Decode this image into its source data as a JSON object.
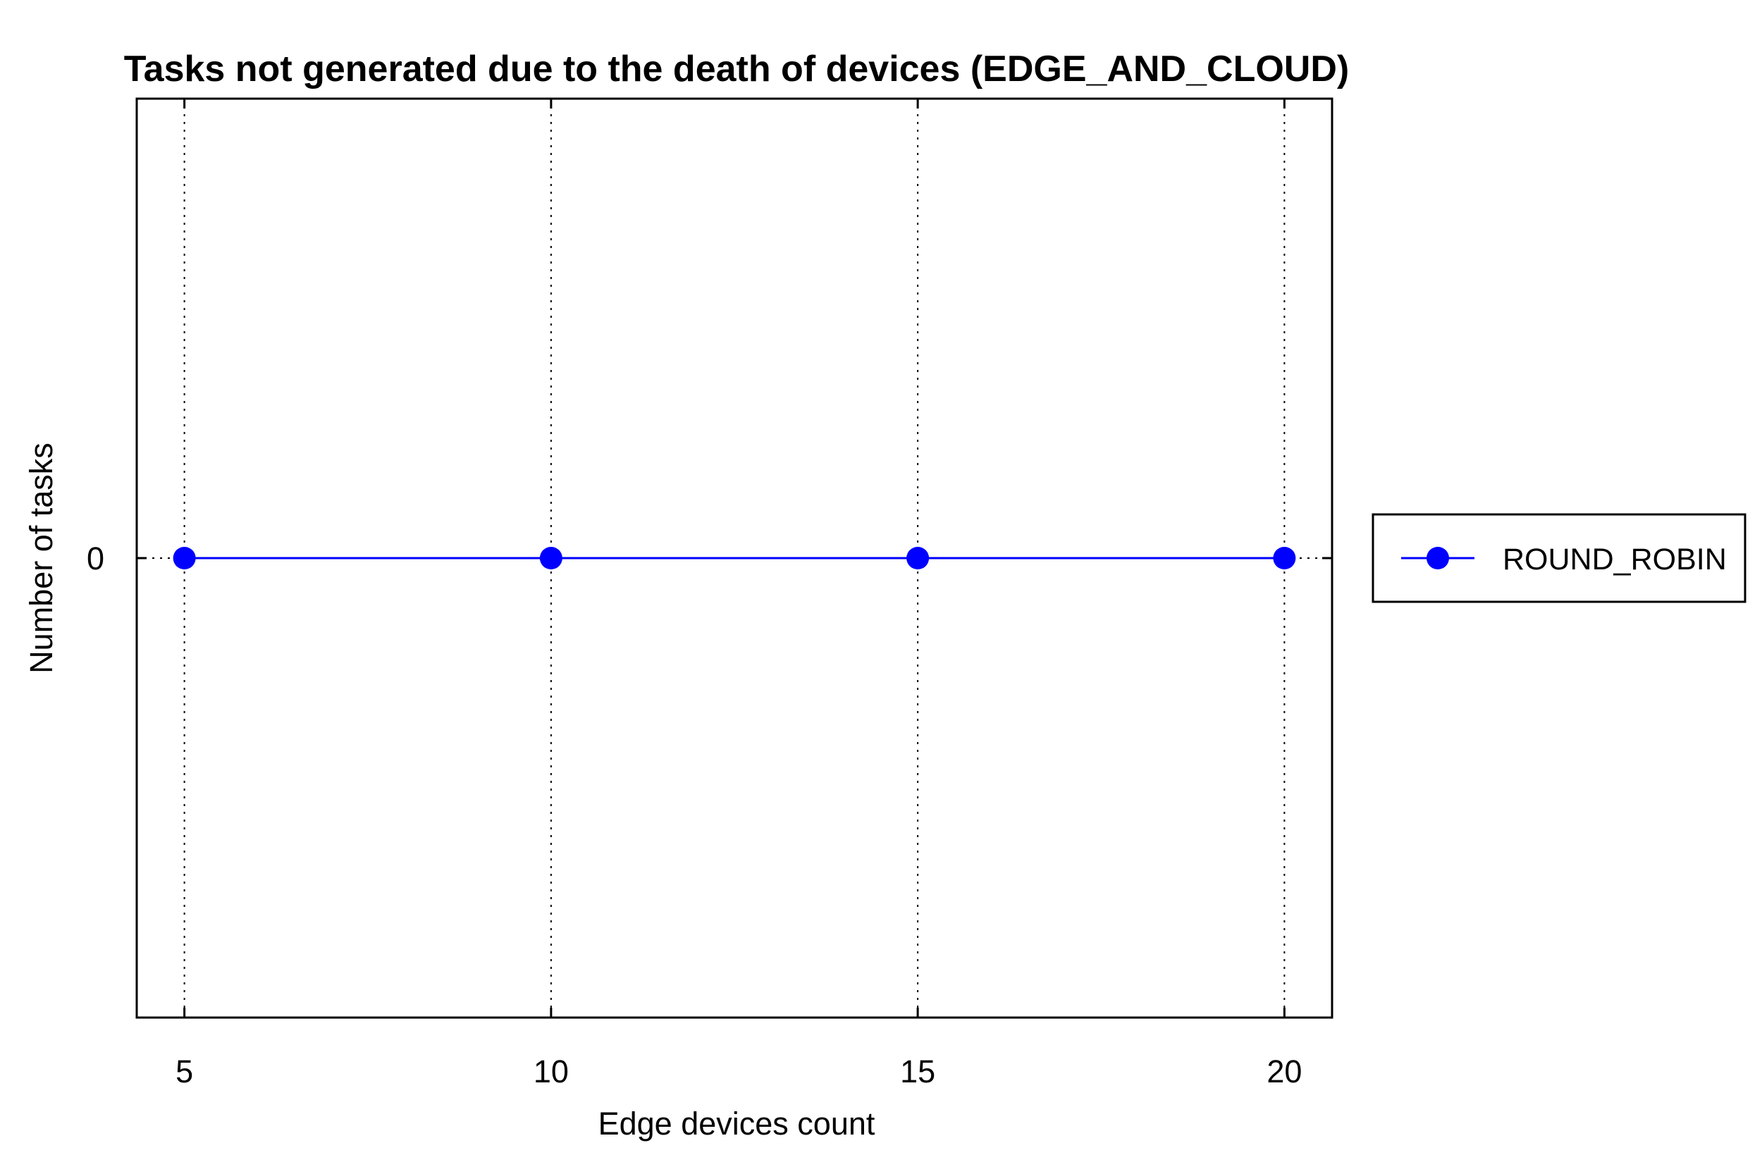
{
  "chart_data": {
    "type": "line",
    "title": "Tasks not generated due to the death of devices (EDGE_AND_CLOUD)",
    "xlabel": "Edge devices count",
    "ylabel": "Number of tasks",
    "x": [
      5,
      10,
      15,
      20
    ],
    "x_ticks": [
      "5",
      "10",
      "15",
      "20"
    ],
    "y_ticks": [
      "0"
    ],
    "xlim": [
      4.35,
      20.65
    ],
    "ylim": [
      -1,
      1
    ],
    "grid": "vertical dotted",
    "legend_position": "right-outside",
    "series": [
      {
        "name": "ROUND_ROBIN",
        "values": [
          0,
          0,
          0,
          0
        ],
        "color": "#0000ff",
        "marker": "circle"
      }
    ]
  }
}
